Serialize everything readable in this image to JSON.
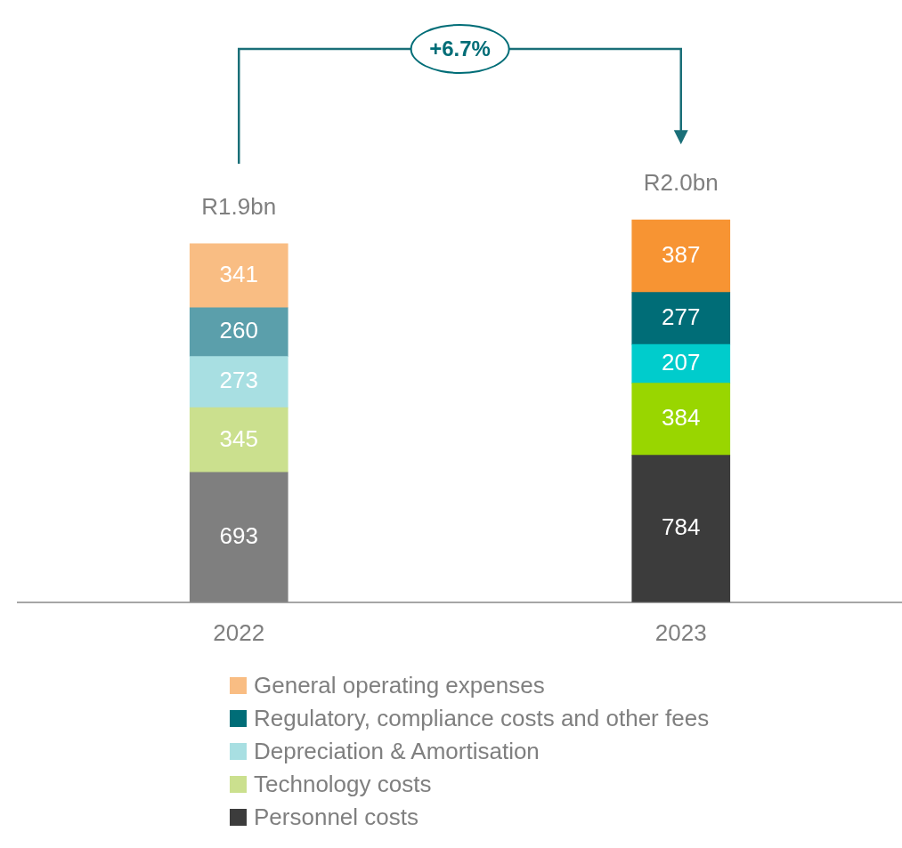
{
  "chart_data": {
    "type": "bar",
    "stacked": true,
    "categories": [
      "2022",
      "2023"
    ],
    "series": [
      {
        "name": "Personnel costs",
        "color": "#3c3c3c",
        "colors": [
          "#7f7f7f",
          "#3c3c3c"
        ],
        "values": [
          693,
          784
        ]
      },
      {
        "name": "Technology costs",
        "color": "#cbe08e",
        "colors": [
          "#cbe08e",
          "#99d600"
        ],
        "values": [
          345,
          384
        ]
      },
      {
        "name": "Depreciation & Amortisation",
        "color": "#a8dfe2",
        "colors": [
          "#a8dfe2",
          "#00cccc"
        ],
        "values": [
          273,
          207
        ]
      },
      {
        "name": "Regulatory, compliance costs and other fees",
        "color": "#006d77",
        "colors": [
          "#5b9fab",
          "#006d77"
        ],
        "values": [
          260,
          277
        ]
      },
      {
        "name": "General operating expenses",
        "color": "#f9bd83",
        "colors": [
          "#f9bd83",
          "#f79433"
        ],
        "values": [
          341,
          387
        ]
      }
    ],
    "data_labels": true,
    "totals": [
      "R1.9bn",
      "R2.0bn"
    ],
    "annotations": [
      "+6.7%"
    ],
    "legend": "bottom",
    "grid": false
  }
}
